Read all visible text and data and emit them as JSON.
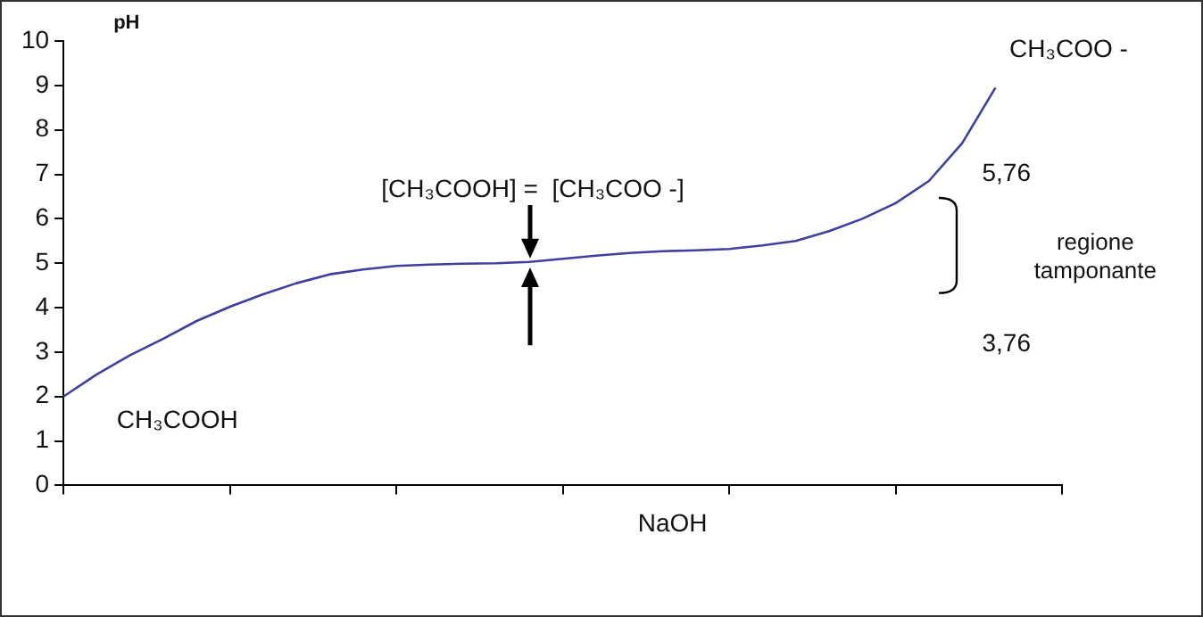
{
  "chart_data": {
    "type": "line",
    "ylabel": "pH",
    "xlabel": "NaOH",
    "categories": [
      null,
      null,
      null,
      null,
      null,
      null,
      null,
      null,
      null,
      null,
      null,
      null,
      null,
      null,
      null,
      null,
      null,
      null,
      null,
      null,
      null,
      null,
      null,
      null,
      null,
      null,
      null,
      null,
      null,
      null,
      null
    ],
    "series": [
      {
        "color": "#3f3f9f",
        "values": [
          2.0,
          2.5,
          2.93,
          3.3,
          3.7,
          4.02,
          4.3,
          4.55,
          4.75,
          4.86,
          4.94,
          4.97,
          4.99,
          5.0,
          5.03,
          5.1,
          5.17,
          5.23,
          5.27,
          5.29,
          5.32,
          5.4,
          5.5,
          5.72,
          6.0,
          6.35,
          6.85,
          7.7,
          8.95,
          null,
          null
        ]
      }
    ],
    "ylim": [
      0,
      10
    ],
    "yticks": [
      0,
      1,
      2,
      3,
      4,
      5,
      6,
      7,
      8,
      9,
      10
    ],
    "tick_labels": "y",
    "grid": false,
    "legend": false,
    "marker": "none",
    "line_style": "solid",
    "annotations": [
      "CH₃COOH",
      "[CH₃COOH] =  [CH₃COO -]",
      "CH₃COO -",
      "5,76",
      "regione\ntamponante",
      "3,76"
    ]
  }
}
